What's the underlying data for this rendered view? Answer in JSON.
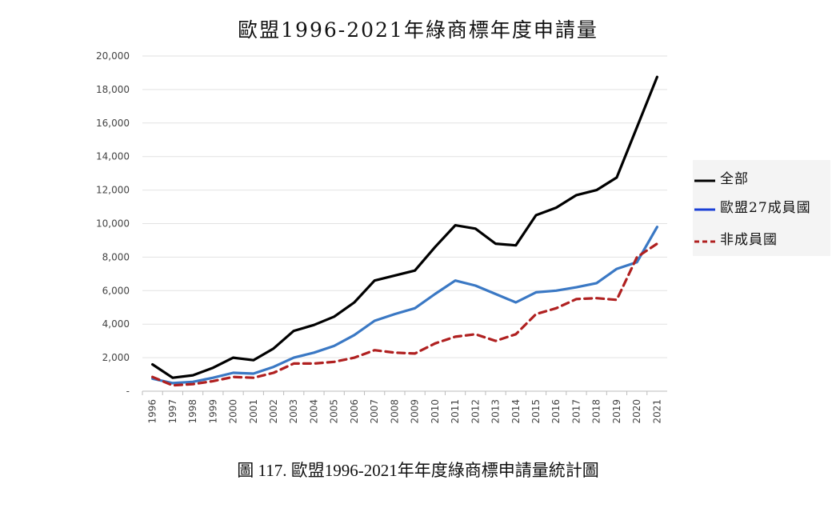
{
  "chart_data": {
    "type": "line",
    "title": "歐盟1996-2021年綠商標年度申請量",
    "xlabel": "",
    "ylabel": "",
    "ylim": [
      0,
      20000
    ],
    "yticks": [
      0,
      2000,
      4000,
      6000,
      8000,
      10000,
      12000,
      14000,
      16000,
      18000,
      20000
    ],
    "ytick_labels": [
      "-",
      "2,000",
      "4,000",
      "6,000",
      "8,000",
      "10,000",
      "12,000",
      "14,000",
      "16,000",
      "18,000",
      "20,000"
    ],
    "categories": [
      "1996",
      "1997",
      "1998",
      "1999",
      "2000",
      "2001",
      "2002",
      "2003",
      "2004",
      "2005",
      "2006",
      "2007",
      "2008",
      "2009",
      "2010",
      "2011",
      "2012",
      "2013",
      "2014",
      "2015",
      "2016",
      "2017",
      "2018",
      "2019",
      "2020",
      "2021"
    ],
    "grid": true,
    "legend_position": "right",
    "series": [
      {
        "name": "全部",
        "color": "#000000",
        "style": "solid",
        "values": [
          1600,
          800,
          950,
          1400,
          2000,
          1850,
          2550,
          3600,
          3950,
          4450,
          5300,
          6600,
          6900,
          7200,
          8600,
          9900,
          9700,
          8800,
          8700,
          10500,
          10950,
          11700,
          12000,
          12750,
          15750,
          18750
        ]
      },
      {
        "name": "歐盟27成員國",
        "color": "#3a78c4",
        "style": "solid",
        "values": [
          750,
          480,
          560,
          800,
          1100,
          1050,
          1450,
          2000,
          2300,
          2700,
          3350,
          4200,
          4600,
          4950,
          5800,
          6600,
          6300,
          5800,
          5300,
          5900,
          6000,
          6200,
          6450,
          7300,
          7700,
          9800
        ]
      },
      {
        "name": "非成員國",
        "color": "#b02020",
        "style": "dashed",
        "values": [
          850,
          350,
          420,
          600,
          850,
          800,
          1100,
          1650,
          1650,
          1750,
          2000,
          2450,
          2300,
          2250,
          2850,
          3250,
          3400,
          3000,
          3400,
          4600,
          4950,
          5500,
          5550,
          5450,
          8000,
          8800
        ]
      }
    ]
  },
  "legend": [
    {
      "label": "全部",
      "color": "#000000",
      "style": "solid"
    },
    {
      "label": "歐盟27成員國",
      "color": "#1a3fd6",
      "style": "solid"
    },
    {
      "label": "非成員國",
      "color": "#b02020",
      "style": "dashed"
    }
  ],
  "caption": "圖 117. 歐盟1996-2021年年度綠商標申請量統計圖"
}
